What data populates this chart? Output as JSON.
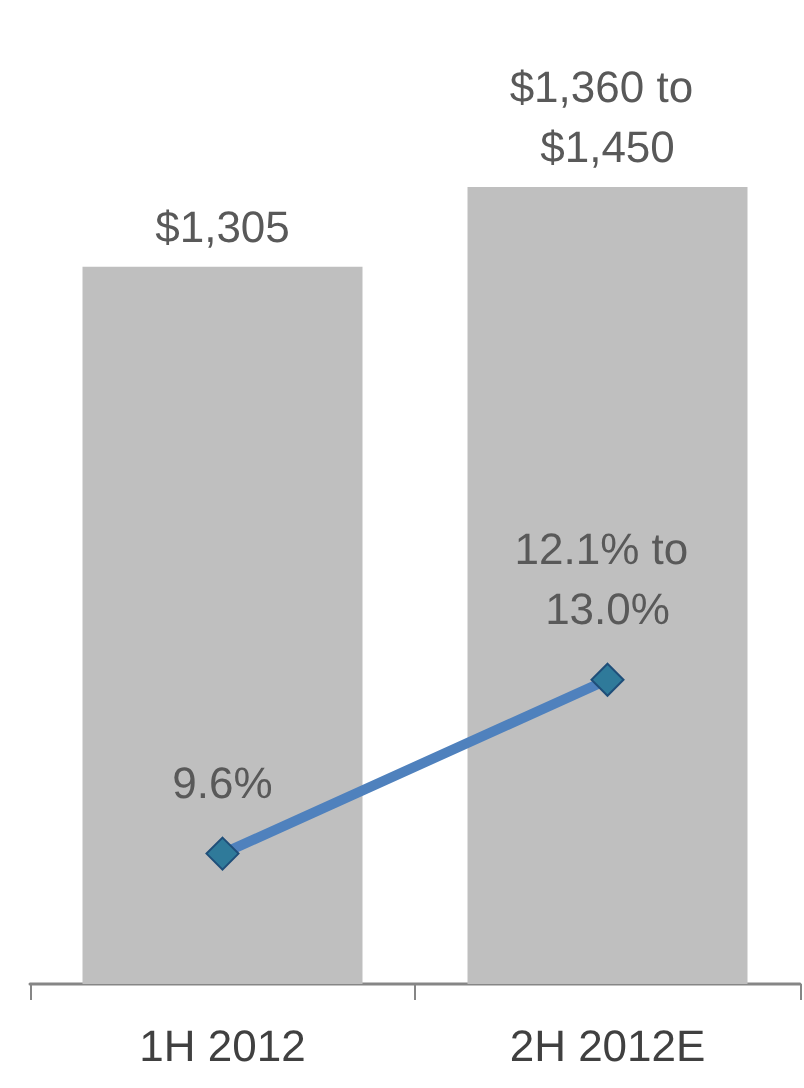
{
  "chart_data": {
    "type": "bar",
    "categories": [
      "1H 2012",
      "2H 2012E"
    ],
    "tick_labels": "x",
    "marker": "diamond",
    "series": [
      {
        "color": "#bfbfbf",
        "values": [
          1305,
          1450
        ],
        "value_labels": [
          "$1,305",
          "$1,360 to $1,450"
        ]
      },
      {
        "type": "line",
        "axis": "y2",
        "color": "#4f81bd",
        "values": [
          9.6,
          13.0
        ],
        "value_labels": [
          "9.6%",
          "12.1% to 13.0%"
        ]
      }
    ]
  }
}
